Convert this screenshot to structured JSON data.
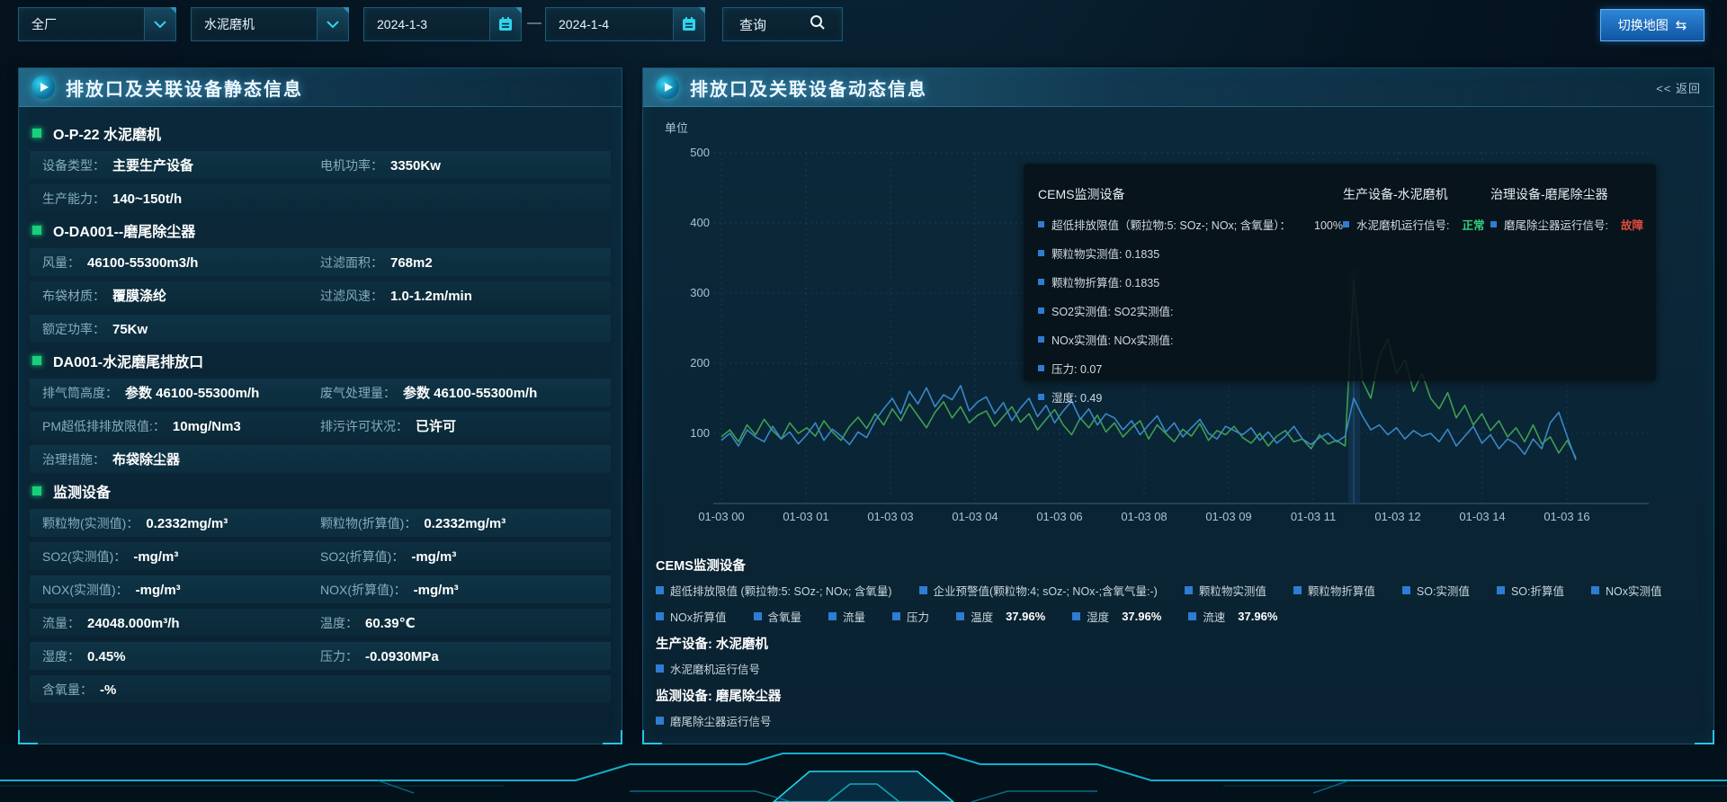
{
  "colors": {
    "accent": "#27c4e8",
    "green_status": "#34d07c",
    "red_status": "#e04b3c",
    "line_green": "#3f9e52",
    "line_blue": "#3a87c8",
    "legend_marker": "#2d7dd2"
  },
  "topbar": {
    "plant_select": "全厂",
    "device_select": "水泥磨机",
    "date_start": "2024-1-3",
    "date_separator": "—",
    "date_end": "2024-1-4",
    "query_label": "查询",
    "switch_map_label": "切换地图",
    "switch_map_icon": "⇆"
  },
  "left_panel": {
    "title": "排放口及关联设备静态信息",
    "sections": [
      {
        "title": "O-P-22 水泥磨机",
        "rows": [
          [
            {
              "label": "设备类型：",
              "value": "主要生产设备"
            },
            {
              "label": "电机功率：",
              "value": "3350Kw"
            }
          ],
          [
            {
              "label": "生产能力：",
              "value": "140~150t/h"
            }
          ]
        ]
      },
      {
        "title": "O-DA001--磨尾除尘器",
        "rows": [
          [
            {
              "label": "风量：",
              "value": "46100-55300m3/h"
            },
            {
              "label": "过滤面积：",
              "value": "768m2"
            }
          ],
          [
            {
              "label": "布袋材质：",
              "value": "覆膜涤纶"
            },
            {
              "label": "过滤风速：",
              "value": "1.0-1.2m/min"
            }
          ],
          [
            {
              "label": "额定功率：",
              "value": "75Kw"
            }
          ]
        ]
      },
      {
        "title": "DA001-水泥磨尾排放口",
        "rows": [
          [
            {
              "label": "排气筒高度：",
              "value": "参数 46100-55300m/h"
            },
            {
              "label": "废气处理量：",
              "value": "参数 46100-55300m/h"
            }
          ],
          [
            {
              "label": "PM超低排排放限值:：",
              "value": "10mg/Nm3"
            },
            {
              "label": "排污许可状况：",
              "value": "已许可"
            }
          ],
          [
            {
              "label": "治理措施：",
              "value": "布袋除尘器"
            }
          ]
        ]
      },
      {
        "title": "监测设备",
        "rows": [
          [
            {
              "label": "颗粒物(实测值)：",
              "value": "0.2332mg/m³"
            },
            {
              "label": "颗粒物(折算值)：",
              "value": "0.2332mg/m³"
            }
          ],
          [
            {
              "label": "SO2(实测值)：",
              "value": "-mg/m³"
            },
            {
              "label": "SO2(折算值)：",
              "value": "-mg/m³"
            }
          ],
          [
            {
              "label": "NOX(实测值)：",
              "value": "-mg/m³"
            },
            {
              "label": "NOX(折算值)：",
              "value": "-mg/m³"
            }
          ],
          [
            {
              "label": "流量：",
              "value": "24048.000m³/h"
            },
            {
              "label": "温度：",
              "value": "60.39℃"
            }
          ],
          [
            {
              "label": "湿度：",
              "value": "0.45%"
            },
            {
              "label": "压力：",
              "value": "-0.0930MPa"
            }
          ],
          [
            {
              "label": "含氧量：",
              "value": "-%"
            }
          ]
        ]
      }
    ]
  },
  "right_panel": {
    "title": "排放口及关联设备动态信息",
    "back_label": "<< 返回",
    "tooltip": {
      "cems_title": "CEMS监测设备",
      "cems_items": [
        {
          "text": "超低排放限值（颗拉物:5: SOz-; NOx; 含氧量）：",
          "value": "100%"
        },
        {
          "text": "颗粒物实测值: 0.1835"
        },
        {
          "text": "颗粒物折算值: 0.1835"
        },
        {
          "text": "SO2实测值: SO2实测值:"
        },
        {
          "text": "NOx实测值: NOx实测值:"
        },
        {
          "text": "压力: 0.07"
        },
        {
          "text": "湿度: 0.49"
        }
      ],
      "prod_title": "生产设备-水泥磨机",
      "prod_item": {
        "text": "水泥磨机运行信号:",
        "status": "正常",
        "status_color": "#34d07c"
      },
      "treat_title": "治理设备-磨尾除尘器",
      "treat_item": {
        "text": "磨尾除尘器运行信号:",
        "status": "故障",
        "status_color": "#e04b3c"
      }
    },
    "legend": {
      "cems_title": "CEMS监测设备",
      "rows": [
        [
          {
            "label": "超低排放限值 (颗拉物:5: SOz-; NOx; 含氧量)"
          },
          {
            "label": "企业预警值(颗粒物:4; sOz-; NOx-;含氧气量:-)"
          },
          {
            "label": "颗粒物实测值"
          },
          {
            "label": "颗粒物折算值"
          },
          {
            "label": "SO:实测值"
          },
          {
            "label": "SO:折算值"
          },
          {
            "label": "NOx实测值"
          }
        ],
        [
          {
            "label": "NOx折算值"
          },
          {
            "label": "含氧量"
          },
          {
            "label": "流量"
          },
          {
            "label": "压力"
          },
          {
            "label": "温度",
            "value": "37.96%"
          },
          {
            "label": "湿度",
            "value": "37.96%"
          },
          {
            "label": "流速",
            "value": "37.96%"
          }
        ]
      ],
      "prod_title": "生产设备: 水泥磨机",
      "prod_items": [
        {
          "label": "水泥磨机运行信号"
        }
      ],
      "mon_title": "监测设备: 磨尾除尘器",
      "mon_items": [
        {
          "label": "磨尾除尘器运行信号"
        }
      ]
    }
  },
  "chart_data": {
    "type": "line",
    "ylabel": "单位",
    "ylim": [
      0,
      500
    ],
    "yticks": [
      100,
      200,
      300,
      400,
      500
    ],
    "x_ticks": [
      "01-03 00",
      "01-03 01",
      "01-03 03",
      "01-03 04",
      "01-03 06",
      "01-03 08",
      "01-03 09",
      "01-03 11",
      "01-03 12",
      "01-03 14",
      "01-03 16"
    ],
    "grid": true,
    "highlight_index": 74,
    "series": [
      {
        "name": "颗粒物实测值",
        "color": "#3f9e52",
        "values": [
          95,
          105,
          88,
          112,
          98,
          120,
          104,
          92,
          115,
          100,
          108,
          96,
          118,
          102,
          90,
          110,
          123,
          107,
          128,
          112,
          135,
          118,
          142,
          125,
          108,
          130,
          145,
          122,
          138,
          115,
          126,
          132,
          110,
          124,
          138,
          116,
          128,
          105,
          120,
          134,
          112,
          98,
          122,
          108,
          126,
          102,
          115,
          95,
          108,
          118,
          92,
          112,
          100,
          88,
          106,
          96,
          114,
          90,
          104,
          98,
          110,
          94,
          86,
          100,
          82,
          96,
          104,
          88,
          92,
          78,
          98,
          85,
          90,
          82,
          320,
          175,
          150,
          210,
          235,
          185,
          205,
          160,
          185,
          150,
          135,
          158,
          122,
          140,
          112,
          128,
          104,
          118,
          95,
          108,
          88,
          112,
          85,
          95,
          72,
          90,
          65
        ]
      },
      {
        "name": "颗粒物折算值",
        "color": "#3a87c8",
        "values": [
          90,
          100,
          82,
          105,
          95,
          88,
          110,
          92,
          102,
          85,
          98,
          115,
          90,
          106,
          96,
          84,
          102,
          94,
          118,
          135,
          150,
          128,
          160,
          142,
          165,
          138,
          155,
          148,
          168,
          132,
          145,
          152,
          128,
          144,
          118,
          136,
          150,
          124,
          140,
          115,
          132,
          146,
          120,
          135,
          112,
          128,
          122,
          105,
          118,
          98,
          112,
          125,
          102,
          115,
          95,
          108,
          120,
          100,
          92,
          110,
          104,
          98,
          108,
          90,
          102,
          86,
          96,
          110,
          92,
          84,
          94,
          100,
          88,
          96,
          150,
          125,
          105,
          112,
          98,
          108,
          92,
          104,
          96,
          100,
          88,
          106,
          82,
          96,
          110,
          86,
          98,
          78,
          92,
          85,
          70,
          92,
          78,
          115,
          130,
          95,
          62
        ]
      }
    ]
  }
}
